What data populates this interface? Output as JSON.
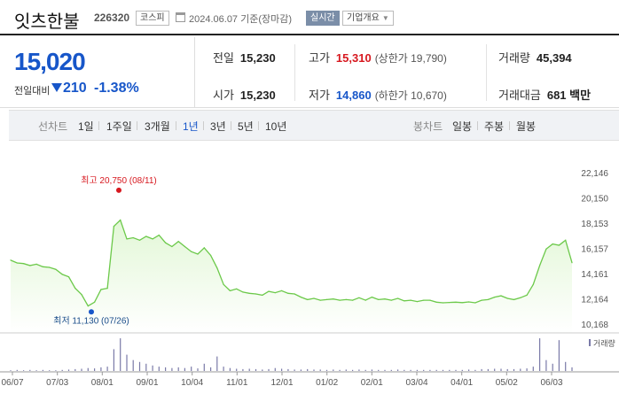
{
  "header": {
    "name": "잇츠한불",
    "code": "226320",
    "market": "코스피",
    "date_text": "2024.06.07  기준(장마감)",
    "realtime_label": "실시간",
    "corp_info_label": "기업개요"
  },
  "quote": {
    "price": "15,020",
    "change_label": "전일대비",
    "change": "210",
    "change_rate": "-1.38%",
    "prev_close_label": "전일",
    "prev_close": "15,230",
    "open_label": "시가",
    "open": "15,230",
    "high_label": "고가",
    "high": "15,310",
    "upper_limit_label": "(상한가 19,790)",
    "low_label": "저가",
    "low": "14,860",
    "lower_limit_label": "(하한가 10,670)",
    "volume_label": "거래량",
    "volume": "45,394",
    "amount_label": "거래대금",
    "amount": "681 백만"
  },
  "tabs": {
    "line_label": "선차트",
    "line_items": [
      "1일",
      "1주일",
      "3개월",
      "1년",
      "3년",
      "5년",
      "10년"
    ],
    "active": "1년",
    "candle_label": "봉차트",
    "candle_items": [
      "일봉",
      "주봉",
      "월봉"
    ]
  },
  "colors": {
    "line": "#6cc94a",
    "fill": "#e2f7d6",
    "price_blue": "#1756c9",
    "up_red": "#d7181f",
    "volume_bar": "#7a7aa8"
  },
  "chart_data": {
    "type": "area",
    "x_ticks": [
      "06/07",
      "07/03",
      "08/01",
      "09/01",
      "10/04",
      "11/01",
      "12/01",
      "01/02",
      "02/01",
      "03/04",
      "04/01",
      "05/02",
      "06/03"
    ],
    "y_ticks": [
      "22,146",
      "20,150",
      "18,153",
      "16,157",
      "14,161",
      "12,164",
      "10,168"
    ],
    "ylim": [
      10168,
      22146
    ],
    "grid": false,
    "high_annotation": "최고 20,750 (08/11)",
    "low_annotation": "최저 11,130 (07/26)",
    "volume_label": "거래량",
    "series": [
      {
        "values": [
          15220,
          15000,
          14950,
          14800,
          14900,
          14700,
          14650,
          14500,
          14100,
          13900,
          13000,
          12500,
          11600,
          11900,
          12900,
          13000,
          17900,
          18400,
          16900,
          17000,
          16800,
          17100,
          16900,
          17200,
          16600,
          16300,
          16700,
          16300,
          15900,
          15700,
          16200,
          15600,
          14600,
          13300,
          12800,
          12950,
          12700,
          12600,
          12550,
          12450,
          12750,
          12650,
          12800,
          12600,
          12550,
          12300,
          12100,
          12200,
          12050,
          12100,
          12150,
          12050,
          12100,
          12050,
          12250,
          12050,
          12300,
          12100,
          12150,
          12050,
          12200,
          12000,
          12050,
          11950,
          12050,
          12050,
          11900,
          11850,
          11880,
          11900,
          11860,
          11920,
          11850,
          12050,
          12100,
          12300,
          12400,
          12200,
          12100,
          12250,
          12450,
          13300,
          14800,
          16100,
          16500,
          16400,
          16800,
          15020
        ]
      }
    ],
    "volume_values": [
      0.02,
      0.03,
      0.02,
      0.03,
      0.02,
      0.03,
      0.02,
      0.02,
      0.03,
      0.04,
      0.05,
      0.06,
      0.08,
      0.07,
      0.1,
      0.12,
      0.6,
      0.9,
      0.45,
      0.3,
      0.25,
      0.2,
      0.15,
      0.12,
      0.1,
      0.08,
      0.1,
      0.08,
      0.12,
      0.07,
      0.2,
      0.1,
      0.4,
      0.12,
      0.08,
      0.06,
      0.05,
      0.06,
      0.05,
      0.04,
      0.05,
      0.08,
      0.06,
      0.05,
      0.04,
      0.04,
      0.05,
      0.04,
      0.04,
      0.03,
      0.04,
      0.03,
      0.04,
      0.03,
      0.04,
      0.03,
      0.04,
      0.03,
      0.03,
      0.03,
      0.04,
      0.03,
      0.03,
      0.03,
      0.03,
      0.03,
      0.03,
      0.03,
      0.03,
      0.03,
      0.03,
      0.04,
      0.03,
      0.05,
      0.05,
      0.06,
      0.06,
      0.05,
      0.05,
      0.06,
      0.07,
      0.12,
      0.9,
      0.3,
      0.2,
      0.85,
      0.25,
      0.1
    ]
  }
}
